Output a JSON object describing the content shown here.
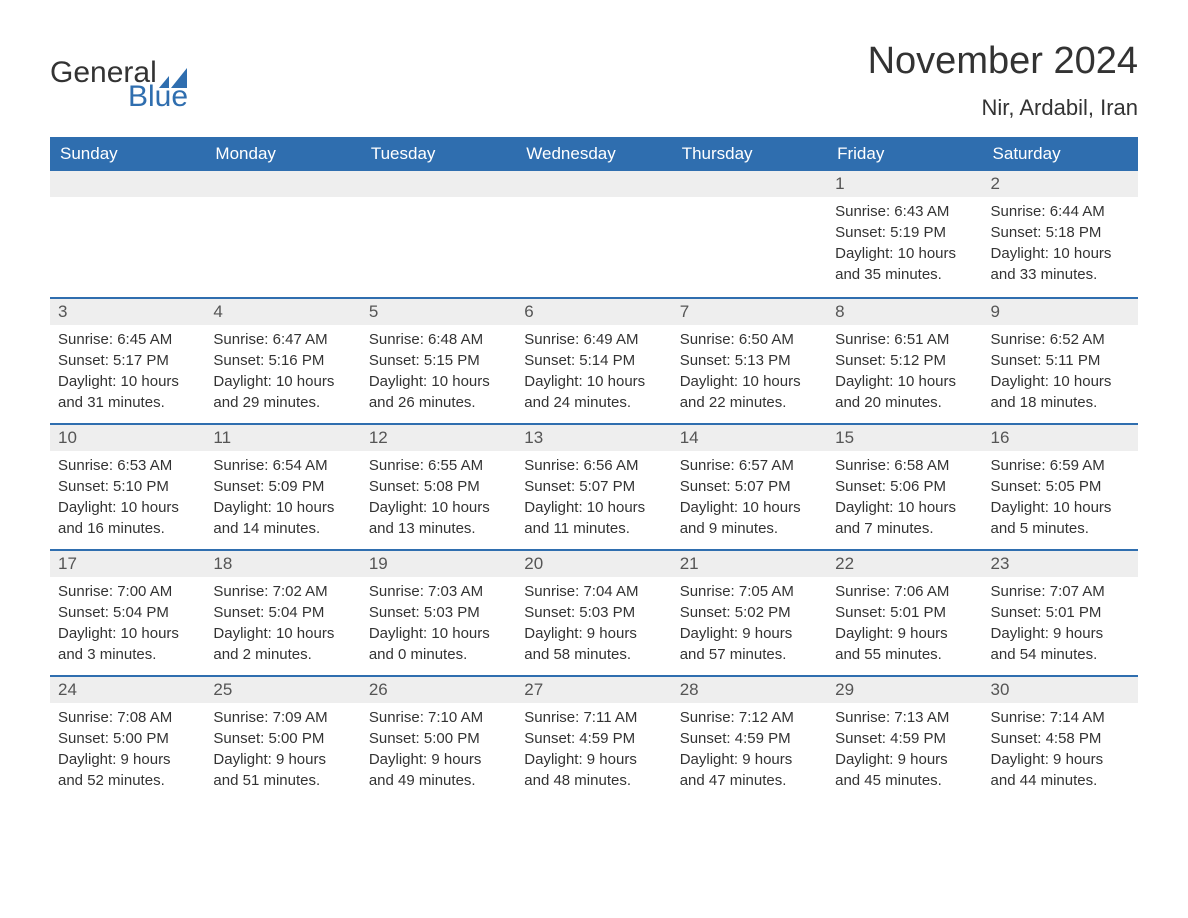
{
  "brand": {
    "word1": "General",
    "word2": "Blue",
    "flag_color": "#2f6eaf"
  },
  "title": "November 2024",
  "location": "Nir, Ardabil, Iran",
  "colors": {
    "header_bg": "#2f6eaf",
    "header_text": "#ffffff",
    "daynum_bg": "#eeeeee",
    "body_text": "#333333",
    "page_bg": "#ffffff",
    "row_border": "#2f6eaf"
  },
  "typography": {
    "title_fontsize": 38,
    "location_fontsize": 22,
    "header_fontsize": 17,
    "daynum_fontsize": 17,
    "body_fontsize": 15
  },
  "columns": [
    "Sunday",
    "Monday",
    "Tuesday",
    "Wednesday",
    "Thursday",
    "Friday",
    "Saturday"
  ],
  "weeks": [
    [
      {
        "empty": true
      },
      {
        "empty": true
      },
      {
        "empty": true
      },
      {
        "empty": true
      },
      {
        "empty": true
      },
      {
        "num": "1",
        "sunrise": "Sunrise: 6:43 AM",
        "sunset": "Sunset: 5:19 PM",
        "daylight": "Daylight: 10 hours and 35 minutes."
      },
      {
        "num": "2",
        "sunrise": "Sunrise: 6:44 AM",
        "sunset": "Sunset: 5:18 PM",
        "daylight": "Daylight: 10 hours and 33 minutes."
      }
    ],
    [
      {
        "num": "3",
        "sunrise": "Sunrise: 6:45 AM",
        "sunset": "Sunset: 5:17 PM",
        "daylight": "Daylight: 10 hours and 31 minutes."
      },
      {
        "num": "4",
        "sunrise": "Sunrise: 6:47 AM",
        "sunset": "Sunset: 5:16 PM",
        "daylight": "Daylight: 10 hours and 29 minutes."
      },
      {
        "num": "5",
        "sunrise": "Sunrise: 6:48 AM",
        "sunset": "Sunset: 5:15 PM",
        "daylight": "Daylight: 10 hours and 26 minutes."
      },
      {
        "num": "6",
        "sunrise": "Sunrise: 6:49 AM",
        "sunset": "Sunset: 5:14 PM",
        "daylight": "Daylight: 10 hours and 24 minutes."
      },
      {
        "num": "7",
        "sunrise": "Sunrise: 6:50 AM",
        "sunset": "Sunset: 5:13 PM",
        "daylight": "Daylight: 10 hours and 22 minutes."
      },
      {
        "num": "8",
        "sunrise": "Sunrise: 6:51 AM",
        "sunset": "Sunset: 5:12 PM",
        "daylight": "Daylight: 10 hours and 20 minutes."
      },
      {
        "num": "9",
        "sunrise": "Sunrise: 6:52 AM",
        "sunset": "Sunset: 5:11 PM",
        "daylight": "Daylight: 10 hours and 18 minutes."
      }
    ],
    [
      {
        "num": "10",
        "sunrise": "Sunrise: 6:53 AM",
        "sunset": "Sunset: 5:10 PM",
        "daylight": "Daylight: 10 hours and 16 minutes."
      },
      {
        "num": "11",
        "sunrise": "Sunrise: 6:54 AM",
        "sunset": "Sunset: 5:09 PM",
        "daylight": "Daylight: 10 hours and 14 minutes."
      },
      {
        "num": "12",
        "sunrise": "Sunrise: 6:55 AM",
        "sunset": "Sunset: 5:08 PM",
        "daylight": "Daylight: 10 hours and 13 minutes."
      },
      {
        "num": "13",
        "sunrise": "Sunrise: 6:56 AM",
        "sunset": "Sunset: 5:07 PM",
        "daylight": "Daylight: 10 hours and 11 minutes."
      },
      {
        "num": "14",
        "sunrise": "Sunrise: 6:57 AM",
        "sunset": "Sunset: 5:07 PM",
        "daylight": "Daylight: 10 hours and 9 minutes."
      },
      {
        "num": "15",
        "sunrise": "Sunrise: 6:58 AM",
        "sunset": "Sunset: 5:06 PM",
        "daylight": "Daylight: 10 hours and 7 minutes."
      },
      {
        "num": "16",
        "sunrise": "Sunrise: 6:59 AM",
        "sunset": "Sunset: 5:05 PM",
        "daylight": "Daylight: 10 hours and 5 minutes."
      }
    ],
    [
      {
        "num": "17",
        "sunrise": "Sunrise: 7:00 AM",
        "sunset": "Sunset: 5:04 PM",
        "daylight": "Daylight: 10 hours and 3 minutes."
      },
      {
        "num": "18",
        "sunrise": "Sunrise: 7:02 AM",
        "sunset": "Sunset: 5:04 PM",
        "daylight": "Daylight: 10 hours and 2 minutes."
      },
      {
        "num": "19",
        "sunrise": "Sunrise: 7:03 AM",
        "sunset": "Sunset: 5:03 PM",
        "daylight": "Daylight: 10 hours and 0 minutes."
      },
      {
        "num": "20",
        "sunrise": "Sunrise: 7:04 AM",
        "sunset": "Sunset: 5:03 PM",
        "daylight": "Daylight: 9 hours and 58 minutes."
      },
      {
        "num": "21",
        "sunrise": "Sunrise: 7:05 AM",
        "sunset": "Sunset: 5:02 PM",
        "daylight": "Daylight: 9 hours and 57 minutes."
      },
      {
        "num": "22",
        "sunrise": "Sunrise: 7:06 AM",
        "sunset": "Sunset: 5:01 PM",
        "daylight": "Daylight: 9 hours and 55 minutes."
      },
      {
        "num": "23",
        "sunrise": "Sunrise: 7:07 AM",
        "sunset": "Sunset: 5:01 PM",
        "daylight": "Daylight: 9 hours and 54 minutes."
      }
    ],
    [
      {
        "num": "24",
        "sunrise": "Sunrise: 7:08 AM",
        "sunset": "Sunset: 5:00 PM",
        "daylight": "Daylight: 9 hours and 52 minutes."
      },
      {
        "num": "25",
        "sunrise": "Sunrise: 7:09 AM",
        "sunset": "Sunset: 5:00 PM",
        "daylight": "Daylight: 9 hours and 51 minutes."
      },
      {
        "num": "26",
        "sunrise": "Sunrise: 7:10 AM",
        "sunset": "Sunset: 5:00 PM",
        "daylight": "Daylight: 9 hours and 49 minutes."
      },
      {
        "num": "27",
        "sunrise": "Sunrise: 7:11 AM",
        "sunset": "Sunset: 4:59 PM",
        "daylight": "Daylight: 9 hours and 48 minutes."
      },
      {
        "num": "28",
        "sunrise": "Sunrise: 7:12 AM",
        "sunset": "Sunset: 4:59 PM",
        "daylight": "Daylight: 9 hours and 47 minutes."
      },
      {
        "num": "29",
        "sunrise": "Sunrise: 7:13 AM",
        "sunset": "Sunset: 4:59 PM",
        "daylight": "Daylight: 9 hours and 45 minutes."
      },
      {
        "num": "30",
        "sunrise": "Sunrise: 7:14 AM",
        "sunset": "Sunset: 4:58 PM",
        "daylight": "Daylight: 9 hours and 44 minutes."
      }
    ]
  ]
}
